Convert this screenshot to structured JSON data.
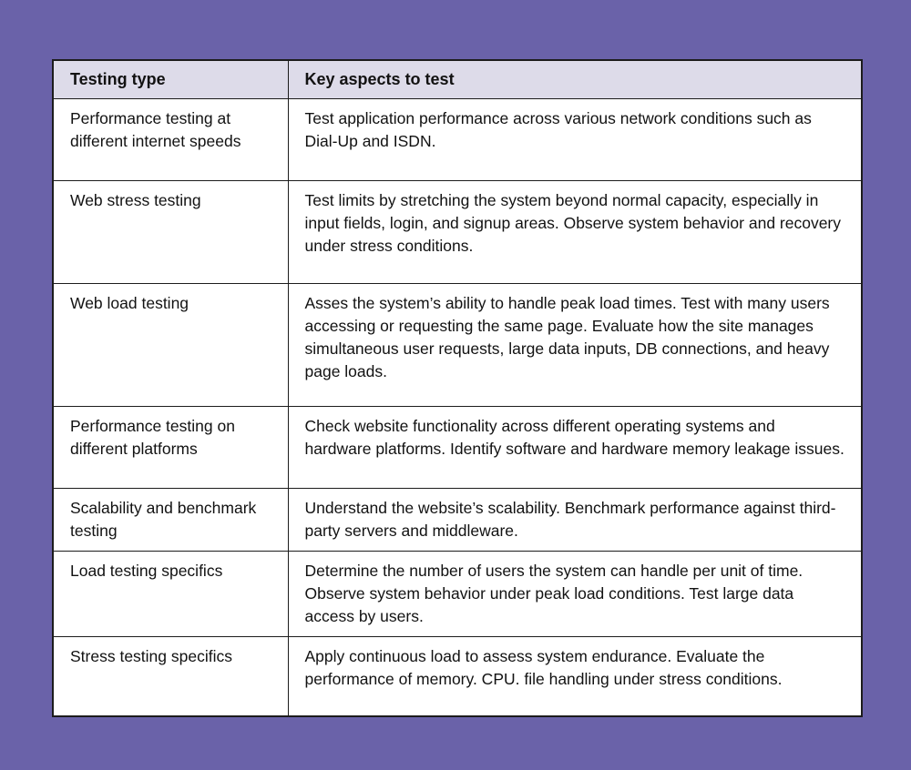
{
  "colors": {
    "page_background": "#6A62A9",
    "header_background": "#DDDBE9",
    "cell_background": "#FFFFFF",
    "border": "#1C1C1C",
    "text": "#121212"
  },
  "table": {
    "headers": [
      "Testing type",
      "Key aspects to test"
    ],
    "rows": [
      {
        "type": "Performance testing at different internet speeds",
        "aspects": "Test application performance across various network conditions such as Dial-Up and ISDN."
      },
      {
        "type": "Web stress testing",
        "aspects": "Test limits by stretching the system beyond normal capacity, especially in input fields, login, and signup areas. Observe system behavior and recovery under stress conditions."
      },
      {
        "type": "Web load testing",
        "aspects": "Asses the system’s ability to handle peak load times. Test with many users accessing or requesting the same page. Evaluate how the site manages simultaneous user requests, large data inputs, DB connections, and heavy page loads."
      },
      {
        "type": "Performance testing on different platforms",
        "aspects": "Check website functionality across different operating systems and hardware platforms. Identify software and hardware memory leakage issues."
      },
      {
        "type": "Scalability and benchmark testing",
        "aspects": "Understand the website’s scalability. Benchmark performance against third-party servers and middleware."
      },
      {
        "type": "Load testing specifics",
        "aspects": "Determine the number of users the system can handle per unit of time. Observe system behavior under peak load conditions. Test large data access by users."
      },
      {
        "type": "Stress testing specifics",
        "aspects": "Apply continuous load to assess system endurance. Evaluate the performance of memory. CPU. file handling under stress conditions."
      }
    ]
  }
}
